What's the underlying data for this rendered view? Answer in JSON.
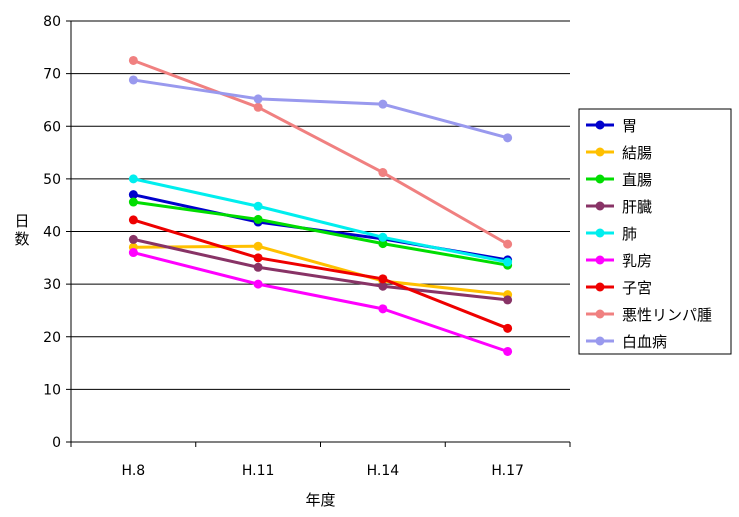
{
  "chart_data": {
    "type": "line",
    "title": "",
    "xlabel": "年度",
    "ylabel": "日数",
    "categories": [
      "H.8",
      "H.11",
      "H.14",
      "H.17"
    ],
    "ylim": [
      0,
      80
    ],
    "yticks": [
      0,
      10,
      20,
      30,
      40,
      50,
      60,
      70,
      80
    ],
    "grid": "horizontal",
    "legend": "right",
    "series": [
      {
        "name": "胃",
        "color": "#0000cc",
        "values": [
          47,
          41.8,
          38.6,
          34.6
        ]
      },
      {
        "name": "結腸",
        "color": "#ffc000",
        "values": [
          37,
          37.2,
          30.6,
          28
        ]
      },
      {
        "name": "直腸",
        "color": "#00dd00",
        "values": [
          45.6,
          42.3,
          37.7,
          33.6
        ]
      },
      {
        "name": "肝臓",
        "color": "#883366",
        "values": [
          38.5,
          33.2,
          29.6,
          27
        ]
      },
      {
        "name": "肺",
        "color": "#00eeee",
        "values": [
          50,
          44.8,
          38.9,
          34.2
        ]
      },
      {
        "name": "乳房",
        "color": "#ff00ff",
        "values": [
          36,
          30,
          25.3,
          17.2
        ]
      },
      {
        "name": "子宮",
        "color": "#ee0000",
        "values": [
          42.2,
          35,
          31,
          21.6
        ]
      },
      {
        "name": "悪性リンパ腫",
        "color": "#f08080",
        "values": [
          72.5,
          63.6,
          51.2,
          37.6
        ]
      },
      {
        "name": "白血病",
        "color": "#9999ee",
        "values": [
          68.8,
          65.2,
          64.2,
          57.8
        ]
      }
    ]
  }
}
